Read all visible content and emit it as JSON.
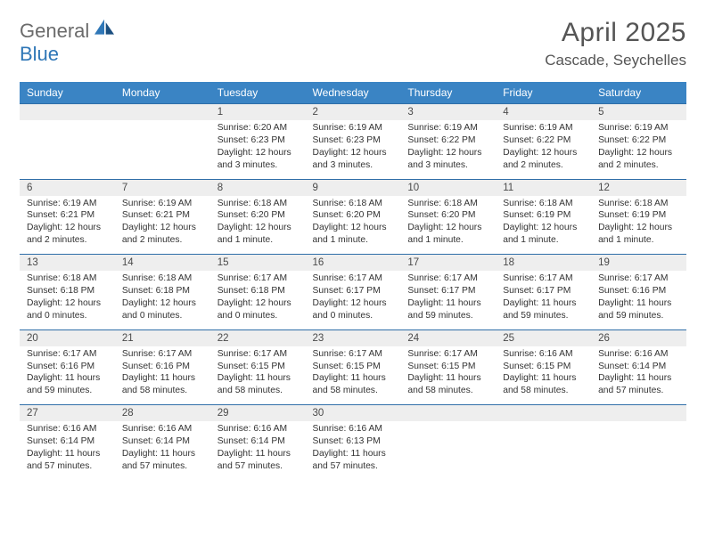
{
  "header": {
    "logo_general": "General",
    "logo_blue": "Blue",
    "month_title": "April 2025",
    "location": "Cascade, Seychelles"
  },
  "colors": {
    "header_bg": "#3a84c4",
    "header_text": "#ffffff",
    "rule": "#2f6ea8",
    "daynum_bg": "#eeeeee",
    "logo_blue": "#2f77b7",
    "logo_gray": "#6b6b6b",
    "body_text": "#333333"
  },
  "day_headers": [
    "Sunday",
    "Monday",
    "Tuesday",
    "Wednesday",
    "Thursday",
    "Friday",
    "Saturday"
  ],
  "weeks": [
    {
      "nums": [
        "",
        "",
        "1",
        "2",
        "3",
        "4",
        "5"
      ],
      "cells": [
        null,
        null,
        {
          "sunrise": "6:20 AM",
          "sunset": "6:23 PM",
          "daylight": "12 hours and 3 minutes."
        },
        {
          "sunrise": "6:19 AM",
          "sunset": "6:23 PM",
          "daylight": "12 hours and 3 minutes."
        },
        {
          "sunrise": "6:19 AM",
          "sunset": "6:22 PM",
          "daylight": "12 hours and 3 minutes."
        },
        {
          "sunrise": "6:19 AM",
          "sunset": "6:22 PM",
          "daylight": "12 hours and 2 minutes."
        },
        {
          "sunrise": "6:19 AM",
          "sunset": "6:22 PM",
          "daylight": "12 hours and 2 minutes."
        }
      ]
    },
    {
      "nums": [
        "6",
        "7",
        "8",
        "9",
        "10",
        "11",
        "12"
      ],
      "cells": [
        {
          "sunrise": "6:19 AM",
          "sunset": "6:21 PM",
          "daylight": "12 hours and 2 minutes."
        },
        {
          "sunrise": "6:19 AM",
          "sunset": "6:21 PM",
          "daylight": "12 hours and 2 minutes."
        },
        {
          "sunrise": "6:18 AM",
          "sunset": "6:20 PM",
          "daylight": "12 hours and 1 minute."
        },
        {
          "sunrise": "6:18 AM",
          "sunset": "6:20 PM",
          "daylight": "12 hours and 1 minute."
        },
        {
          "sunrise": "6:18 AM",
          "sunset": "6:20 PM",
          "daylight": "12 hours and 1 minute."
        },
        {
          "sunrise": "6:18 AM",
          "sunset": "6:19 PM",
          "daylight": "12 hours and 1 minute."
        },
        {
          "sunrise": "6:18 AM",
          "sunset": "6:19 PM",
          "daylight": "12 hours and 1 minute."
        }
      ]
    },
    {
      "nums": [
        "13",
        "14",
        "15",
        "16",
        "17",
        "18",
        "19"
      ],
      "cells": [
        {
          "sunrise": "6:18 AM",
          "sunset": "6:18 PM",
          "daylight": "12 hours and 0 minutes."
        },
        {
          "sunrise": "6:18 AM",
          "sunset": "6:18 PM",
          "daylight": "12 hours and 0 minutes."
        },
        {
          "sunrise": "6:17 AM",
          "sunset": "6:18 PM",
          "daylight": "12 hours and 0 minutes."
        },
        {
          "sunrise": "6:17 AM",
          "sunset": "6:17 PM",
          "daylight": "12 hours and 0 minutes."
        },
        {
          "sunrise": "6:17 AM",
          "sunset": "6:17 PM",
          "daylight": "11 hours and 59 minutes."
        },
        {
          "sunrise": "6:17 AM",
          "sunset": "6:17 PM",
          "daylight": "11 hours and 59 minutes."
        },
        {
          "sunrise": "6:17 AM",
          "sunset": "6:16 PM",
          "daylight": "11 hours and 59 minutes."
        }
      ]
    },
    {
      "nums": [
        "20",
        "21",
        "22",
        "23",
        "24",
        "25",
        "26"
      ],
      "cells": [
        {
          "sunrise": "6:17 AM",
          "sunset": "6:16 PM",
          "daylight": "11 hours and 59 minutes."
        },
        {
          "sunrise": "6:17 AM",
          "sunset": "6:16 PM",
          "daylight": "11 hours and 58 minutes."
        },
        {
          "sunrise": "6:17 AM",
          "sunset": "6:15 PM",
          "daylight": "11 hours and 58 minutes."
        },
        {
          "sunrise": "6:17 AM",
          "sunset": "6:15 PM",
          "daylight": "11 hours and 58 minutes."
        },
        {
          "sunrise": "6:17 AM",
          "sunset": "6:15 PM",
          "daylight": "11 hours and 58 minutes."
        },
        {
          "sunrise": "6:16 AM",
          "sunset": "6:15 PM",
          "daylight": "11 hours and 58 minutes."
        },
        {
          "sunrise": "6:16 AM",
          "sunset": "6:14 PM",
          "daylight": "11 hours and 57 minutes."
        }
      ]
    },
    {
      "nums": [
        "27",
        "28",
        "29",
        "30",
        "",
        "",
        ""
      ],
      "cells": [
        {
          "sunrise": "6:16 AM",
          "sunset": "6:14 PM",
          "daylight": "11 hours and 57 minutes."
        },
        {
          "sunrise": "6:16 AM",
          "sunset": "6:14 PM",
          "daylight": "11 hours and 57 minutes."
        },
        {
          "sunrise": "6:16 AM",
          "sunset": "6:14 PM",
          "daylight": "11 hours and 57 minutes."
        },
        {
          "sunrise": "6:16 AM",
          "sunset": "6:13 PM",
          "daylight": "11 hours and 57 minutes."
        },
        null,
        null,
        null
      ]
    }
  ],
  "labels": {
    "sunrise": "Sunrise:",
    "sunset": "Sunset:",
    "daylight": "Daylight:"
  }
}
